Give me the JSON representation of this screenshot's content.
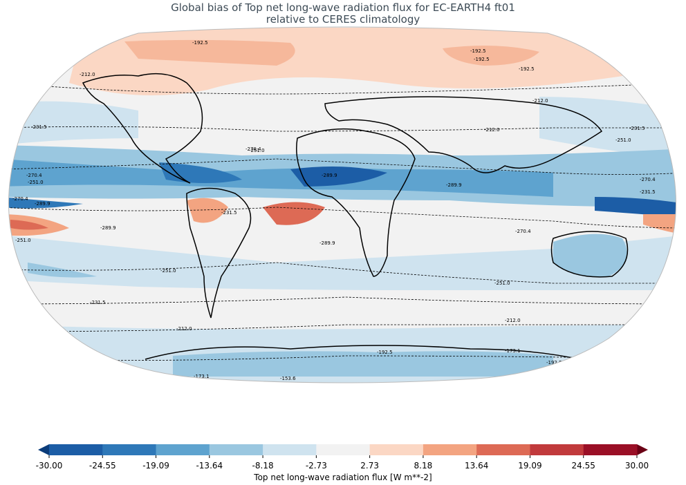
{
  "title_line1": "Global bias of Top net long-wave radiation flux for EC-EARTH4 ft01",
  "title_line2": "relative to CERES climatology",
  "colorbar": {
    "label": "Top net long-wave radiation flux [W m**-2]",
    "ticks": [
      "-30.00",
      "-24.55",
      "-19.09",
      "-13.64",
      "-8.18",
      "-2.73",
      "2.73",
      "8.18",
      "13.64",
      "19.09",
      "24.55",
      "30.00"
    ],
    "colors": [
      "#1c5da6",
      "#2e78b8",
      "#5ea3cf",
      "#9ac7e0",
      "#cfe3ef",
      "#f2f2f2",
      "#fbd7c4",
      "#f3a481",
      "#dd6a55",
      "#c13a3c",
      "#9a0f26"
    ],
    "under_color": "#0b3c7a",
    "over_color": "#6b0015"
  },
  "contour_labels": [
    "-192.5",
    "-192.5",
    "-192.5",
    "-192.5",
    "-212.0",
    "-212.0",
    "-212.0",
    "-231.5",
    "-231.5",
    "-231.5",
    "-231.5",
    "-251.0",
    "-251.0",
    "-251.0",
    "-251.0",
    "-251.0",
    "-270.4",
    "-270.4",
    "-270.4",
    "-270.4",
    "-270.4",
    "-289.9",
    "-289.9",
    "-289.9",
    "-289.9",
    "-289.9",
    "-251.0",
    "-231.5",
    "-212.0",
    "-212.0",
    "-173.1",
    "-173.1",
    "-153.6",
    "-153.6",
    "-192.5",
    "-192.5"
  ]
}
